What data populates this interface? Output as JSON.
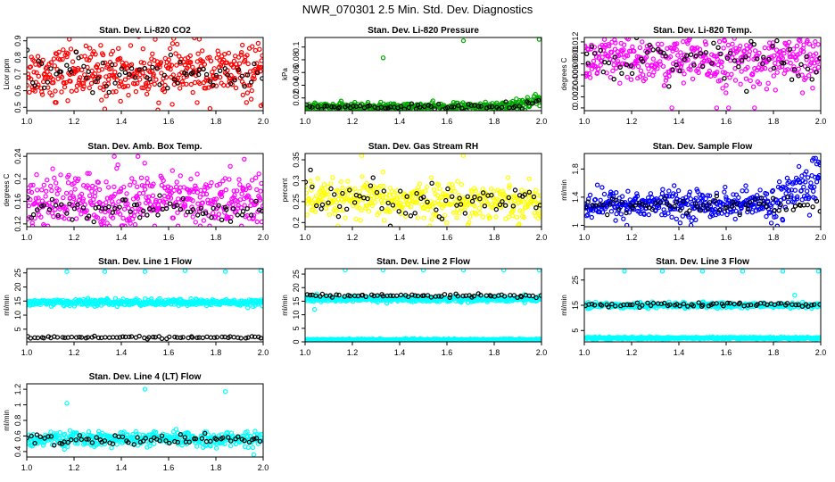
{
  "figure_title": "NWR_070301  2.5 Min. Std. Dev. Diagnostics",
  "chart_data": [
    {
      "id": "co2",
      "type": "scatter",
      "title": "Stan. Dev. Li-820 CO2",
      "ylabel": "Licor ppm",
      "xlim": [
        1.0,
        2.0
      ],
      "ylim": [
        0.48,
        0.92
      ],
      "xticks": [
        1.0,
        1.2,
        1.4,
        1.6,
        1.8,
        2.0
      ],
      "yticks": [
        0.5,
        0.6,
        0.7,
        0.8,
        0.9
      ],
      "color": "#ff0000",
      "series": [
        {
          "name": "main",
          "color": "#ff0000",
          "center": 0.71,
          "spread": 0.075
        },
        {
          "name": "subset",
          "color": "#000000",
          "center": 0.7,
          "spread": 0.06
        }
      ],
      "outliers": [
        [
          1.18,
          0.91
        ],
        [
          1.33,
          0.49
        ],
        [
          1.73,
          0.91
        ],
        [
          1.99,
          0.51
        ],
        [
          1.12,
          0.53
        ]
      ]
    },
    {
      "id": "pressure",
      "type": "scatter",
      "title": "Stan. Dev. Li-820 Pressure",
      "ylabel": "kPa",
      "xlim": [
        1.0,
        2.0
      ],
      "ylim": [
        0.0,
        0.115
      ],
      "xticks": [
        1.0,
        1.2,
        1.4,
        1.6,
        1.8,
        2.0
      ],
      "yticks": [
        0.02,
        0.04,
        0.06,
        0.08,
        0.1
      ],
      "color": "#00aa00",
      "series": [
        {
          "name": "main",
          "color": "#00aa00",
          "center": 0.006,
          "spread": 0.003,
          "trend_end": 0.018
        },
        {
          "name": "subset",
          "color": "#000000",
          "center": 0.006,
          "spread": 0.002,
          "trend_end": 0.014
        }
      ],
      "outliers": [
        [
          1.33,
          0.083
        ],
        [
          1.67,
          0.11
        ],
        [
          1.99,
          0.112
        ]
      ]
    },
    {
      "id": "temp",
      "type": "scatter",
      "title": "Stan. Dev. Li-820 Temp.",
      "ylabel": "degrees C",
      "xlim": [
        1.0,
        2.0
      ],
      "ylim": [
        -0.0005,
        0.0128
      ],
      "xticks": [
        1.0,
        1.2,
        1.4,
        1.6,
        1.8,
        2.0
      ],
      "yticks": [
        0.0,
        0.002,
        0.004,
        0.006,
        0.008,
        0.01,
        0.012
      ],
      "color": "#ff00ff",
      "series": [
        {
          "name": "main",
          "color": "#ff00ff",
          "center": 0.0085,
          "spread": 0.0022
        },
        {
          "name": "subset",
          "color": "#000000",
          "center": 0.009,
          "spread": 0.0018
        }
      ],
      "outliers": [
        [
          1.37,
          0.0
        ],
        [
          1.61,
          0.0
        ],
        [
          1.72,
          0.0
        ],
        [
          1.56,
          0.0
        ]
      ]
    },
    {
      "id": "ambbox",
      "type": "scatter",
      "title": "Stan. Dev. Amb. Box Temp.",
      "ylabel": "degrees C",
      "xlim": [
        1.0,
        2.0
      ],
      "ylim": [
        0.115,
        0.245
      ],
      "xticks": [
        1.0,
        1.2,
        1.4,
        1.6,
        1.8,
        2.0
      ],
      "yticks": [
        0.12,
        0.16,
        0.2,
        0.24
      ],
      "color": "#ff00ff",
      "series": [
        {
          "name": "main",
          "color": "#ff00ff",
          "center": 0.16,
          "spread": 0.025
        },
        {
          "name": "subset",
          "color": "#000000",
          "center": 0.145,
          "spread": 0.012
        }
      ],
      "outliers": [
        [
          1.37,
          0.24
        ],
        [
          1.47,
          0.24
        ],
        [
          1.92,
          0.235
        ]
      ]
    },
    {
      "id": "rh",
      "type": "scatter",
      "title": "Stan. Dev. Gas Stream RH",
      "ylabel": "percent",
      "xlim": [
        1.0,
        2.0
      ],
      "ylim": [
        0.19,
        0.365
      ],
      "xticks": [
        1.0,
        1.2,
        1.4,
        1.6,
        1.8,
        2.0
      ],
      "yticks": [
        0.2,
        0.25,
        0.3,
        0.35
      ],
      "color": "#ffff00",
      "series": [
        {
          "name": "main",
          "color": "#ffff00",
          "center": 0.252,
          "spread": 0.022
        },
        {
          "name": "subset",
          "color": "#000000",
          "center": 0.255,
          "spread": 0.025
        }
      ],
      "outliers": [
        [
          1.24,
          0.36
        ],
        [
          1.67,
          0.36
        ]
      ]
    },
    {
      "id": "sample",
      "type": "scatter",
      "title": "Stan. Dev. Sample Flow",
      "ylabel": "ml/min",
      "xlim": [
        1.0,
        2.0
      ],
      "ylim": [
        0.98,
        2.02
      ],
      "xticks": [
        1.0,
        1.2,
        1.4,
        1.6,
        1.8,
        2.0
      ],
      "yticks": [
        1.0,
        1.4,
        1.8
      ],
      "color": "#0000ff",
      "series": [
        {
          "name": "main",
          "color": "#0000ff",
          "center": 1.3,
          "spread": 0.1,
          "trend_end": 1.75
        },
        {
          "name": "subset",
          "color": "#000000",
          "center": 1.28,
          "spread": 0.06
        }
      ],
      "outliers": [
        [
          1.97,
          1.95
        ],
        [
          1.99,
          1.9
        ],
        [
          1.18,
          1.0
        ]
      ]
    },
    {
      "id": "line1",
      "type": "scatter",
      "title": "Stan. Dev. Line 1 Flow",
      "ylabel": "ml/min",
      "xlim": [
        1.0,
        2.0
      ],
      "ylim": [
        0.5,
        26.5
      ],
      "xticks": [
        1.0,
        1.2,
        1.4,
        1.6,
        1.8,
        2.0
      ],
      "yticks": [
        5,
        10,
        15,
        20,
        25
      ],
      "color": "#00ffff",
      "series": [
        {
          "name": "main",
          "color": "#00ffff",
          "center": 14.5,
          "spread": 0.6
        },
        {
          "name": "subset",
          "color": "#000000",
          "center": 2.1,
          "spread": 0.2
        }
      ],
      "outliers": [
        [
          1.17,
          25.5
        ],
        [
          1.33,
          25.5
        ],
        [
          1.5,
          25.5
        ],
        [
          1.67,
          25.8
        ],
        [
          1.84,
          25.5
        ],
        [
          1.99,
          25.8
        ]
      ]
    },
    {
      "id": "line2",
      "type": "scatter",
      "title": "Stan. Dev. Line 2 Flow",
      "ylabel": "ml/min",
      "xlim": [
        1.0,
        2.0
      ],
      "ylim": [
        0.0,
        27.0
      ],
      "xticks": [
        1.0,
        1.2,
        1.4,
        1.6,
        1.8,
        2.0
      ],
      "yticks": [
        0,
        5,
        10,
        15,
        20,
        25
      ],
      "color": "#00ffff",
      "series": [
        {
          "name": "main",
          "color": "#00ffff",
          "center": 15.8,
          "spread": 0.5
        },
        {
          "name": "main-low",
          "color": "#00ffff",
          "center": 0.8,
          "spread": 0.15
        },
        {
          "name": "subset",
          "color": "#000000",
          "center": 17.0,
          "spread": 0.3
        }
      ],
      "outliers": [
        [
          1.04,
          12.0
        ],
        [
          1.17,
          26.5
        ],
        [
          1.33,
          26.5
        ],
        [
          1.5,
          26.5
        ],
        [
          1.67,
          26.5
        ],
        [
          1.84,
          26.5
        ],
        [
          1.99,
          26.5
        ]
      ]
    },
    {
      "id": "line3",
      "type": "scatter",
      "title": "Stan. Dev. Line 3 Flow",
      "ylabel": "ml/min",
      "xlim": [
        1.0,
        2.0
      ],
      "ylim": [
        0.5,
        29.5
      ],
      "xticks": [
        1.0,
        1.2,
        1.4,
        1.6,
        1.8,
        2.0
      ],
      "yticks": [
        5,
        15,
        25
      ],
      "color": "#00ffff",
      "series": [
        {
          "name": "main",
          "color": "#00ffff",
          "center": 15.0,
          "spread": 0.5
        },
        {
          "name": "main-low",
          "color": "#00ffff",
          "center": 2.0,
          "spread": 0.2
        },
        {
          "name": "subset",
          "color": "#000000",
          "center": 15.2,
          "spread": 0.4
        }
      ],
      "outliers": [
        [
          1.17,
          28.5
        ],
        [
          1.33,
          28.5
        ],
        [
          1.5,
          28.5
        ],
        [
          1.67,
          28.5
        ],
        [
          1.84,
          28.5
        ],
        [
          1.99,
          28.5
        ],
        [
          1.89,
          19.0
        ]
      ]
    },
    {
      "id": "line4",
      "type": "scatter",
      "title": "Stan. Dev. Line 4 (LT) Flow",
      "ylabel": "ml/min",
      "xlim": [
        1.0,
        2.0
      ],
      "ylim": [
        0.33,
        1.27
      ],
      "xticks": [
        1.0,
        1.2,
        1.4,
        1.6,
        1.8,
        2.0
      ],
      "yticks": [
        0.4,
        0.6,
        0.8,
        1.0,
        1.2
      ],
      "color": "#00ffff",
      "series": [
        {
          "name": "main",
          "color": "#00ffff",
          "center": 0.56,
          "spread": 0.045
        },
        {
          "name": "subset",
          "color": "#000000",
          "center": 0.55,
          "spread": 0.035
        }
      ],
      "outliers": [
        [
          1.5,
          1.2
        ],
        [
          1.84,
          1.17
        ],
        [
          1.17,
          1.02
        ],
        [
          1.96,
          0.36
        ]
      ]
    }
  ]
}
